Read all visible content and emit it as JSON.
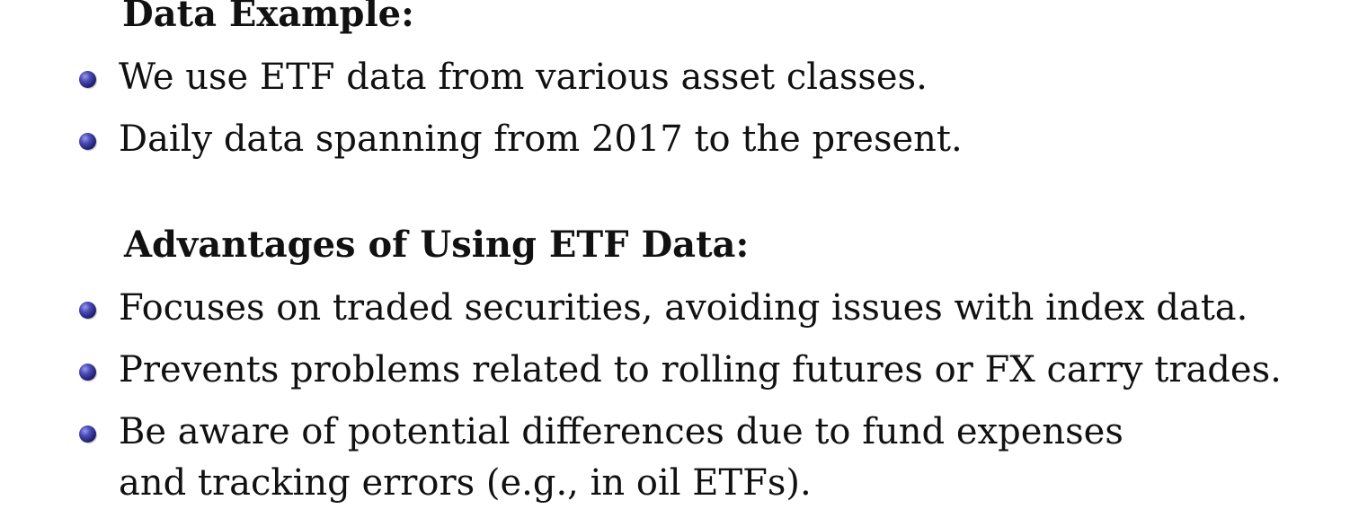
{
  "section_1": {
    "heading": "Data Example:",
    "bullets": [
      "We use ETF data from various asset classes.",
      "Daily data spanning from 2017 to the present."
    ]
  },
  "section_2": {
    "heading": "Advantages of Using ETF Data:",
    "bullets": [
      "Focuses on traded securities, avoiding issues with index data.",
      "Prevents problems related to rolling futures or FX carry trades.",
      "Be aware of potential differences due to fund expenses and tracking errors (e.g., in oil ETFs)."
    ]
  },
  "colors": {
    "bullet": "#2a2a8a",
    "text": "#111111",
    "background": "#ffffff"
  }
}
